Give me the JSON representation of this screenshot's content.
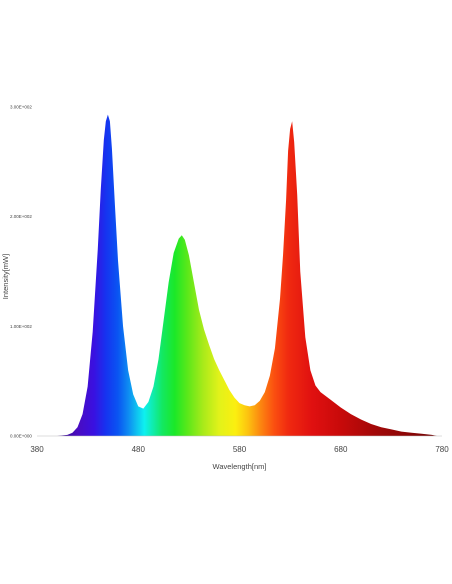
{
  "chart_data": {
    "type": "area",
    "title": "",
    "xlabel": "Wavelength[nm]",
    "ylabel": "Intensity[mW]",
    "xlim": [
      380,
      780
    ],
    "ylim": [
      0,
      300
    ],
    "x_ticks": [
      380,
      480,
      580,
      680,
      780
    ],
    "x_tick_labels": [
      "380",
      "480",
      "580",
      "680",
      "780"
    ],
    "y_ticks": [
      0,
      100,
      200,
      300
    ],
    "y_tick_labels": [
      "0.00E+000",
      "1.00E+002",
      "2.00E+002",
      "3.00E+002"
    ],
    "grid": false,
    "legend": "none",
    "fill": "spectral-gradient",
    "series": [
      {
        "x": [
          380,
          400,
          410,
          415,
          420,
          425,
          430,
          435,
          440,
          443,
          446,
          448,
          450,
          452,
          454,
          457,
          460,
          465,
          470,
          475,
          480,
          485,
          490,
          495,
          500,
          505,
          510,
          515,
          520,
          523,
          526,
          530,
          535,
          540,
          545,
          550,
          555,
          560,
          565,
          570,
          575,
          580,
          585,
          590,
          595,
          600,
          605,
          610,
          615,
          620,
          623,
          626,
          628,
          630,
          632,
          634,
          637,
          640,
          645,
          650,
          655,
          660,
          670,
          680,
          690,
          700,
          710,
          720,
          730,
          740,
          750,
          760,
          770,
          775,
          780
        ],
        "y": [
          0,
          0,
          1,
          3,
          8,
          20,
          45,
          95,
          170,
          225,
          270,
          287,
          293,
          287,
          262,
          210,
          160,
          100,
          60,
          38,
          27,
          25,
          31,
          45,
          70,
          105,
          140,
          167,
          180,
          183,
          179,
          165,
          140,
          115,
          97,
          83,
          70,
          60,
          51,
          42,
          35,
          30,
          28,
          27,
          28,
          32,
          40,
          55,
          80,
          125,
          165,
          215,
          260,
          280,
          287,
          268,
          220,
          150,
          90,
          60,
          46,
          40,
          33,
          26,
          20,
          15,
          11,
          8,
          6,
          4,
          3,
          2,
          1,
          0,
          0
        ]
      }
    ]
  }
}
